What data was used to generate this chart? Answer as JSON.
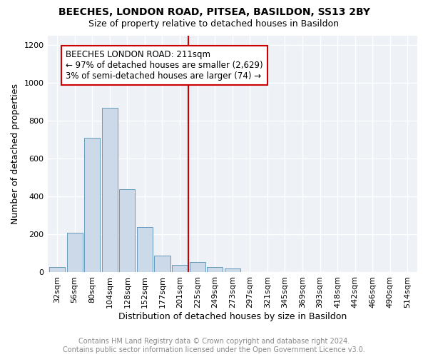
{
  "title1": "BEECHES, LONDON ROAD, PITSEA, BASILDON, SS13 2BY",
  "title2": "Size of property relative to detached houses in Basildon",
  "xlabel": "Distribution of detached houses by size in Basildon",
  "ylabel": "Number of detached properties",
  "footnote": "Contains HM Land Registry data © Crown copyright and database right 2024.\nContains public sector information licensed under the Open Government Licence v3.0.",
  "bar_labels": [
    "32sqm",
    "56sqm",
    "80sqm",
    "104sqm",
    "128sqm",
    "152sqm",
    "177sqm",
    "201sqm",
    "225sqm",
    "249sqm",
    "273sqm",
    "297sqm",
    "321sqm",
    "345sqm",
    "369sqm",
    "393sqm",
    "418sqm",
    "442sqm",
    "466sqm",
    "490sqm",
    "514sqm"
  ],
  "bar_values": [
    30,
    210,
    710,
    870,
    440,
    240,
    90,
    40,
    55,
    30,
    20,
    0,
    0,
    0,
    0,
    0,
    0,
    0,
    0,
    0,
    0
  ],
  "bar_color": "#ccd9e8",
  "bar_edge_color": "#6699bb",
  "vline_x": 7.5,
  "marker_label": "BEECHES LONDON ROAD: 211sqm",
  "marker_line1": "← 97% of detached houses are smaller (2,629)",
  "marker_line2": "3% of semi-detached houses are larger (74) →",
  "ylim": [
    0,
    1250
  ],
  "yticks": [
    0,
    200,
    400,
    600,
    800,
    1000,
    1200
  ],
  "annotation_box_color": "#cc0000",
  "vline_color": "#cc0000",
  "bg_color": "#eef2f7",
  "title1_fontsize": 10,
  "title2_fontsize": 9,
  "xlabel_fontsize": 9,
  "ylabel_fontsize": 9,
  "annotation_fontsize": 8.5,
  "footnote_fontsize": 7,
  "tick_fontsize": 8
}
